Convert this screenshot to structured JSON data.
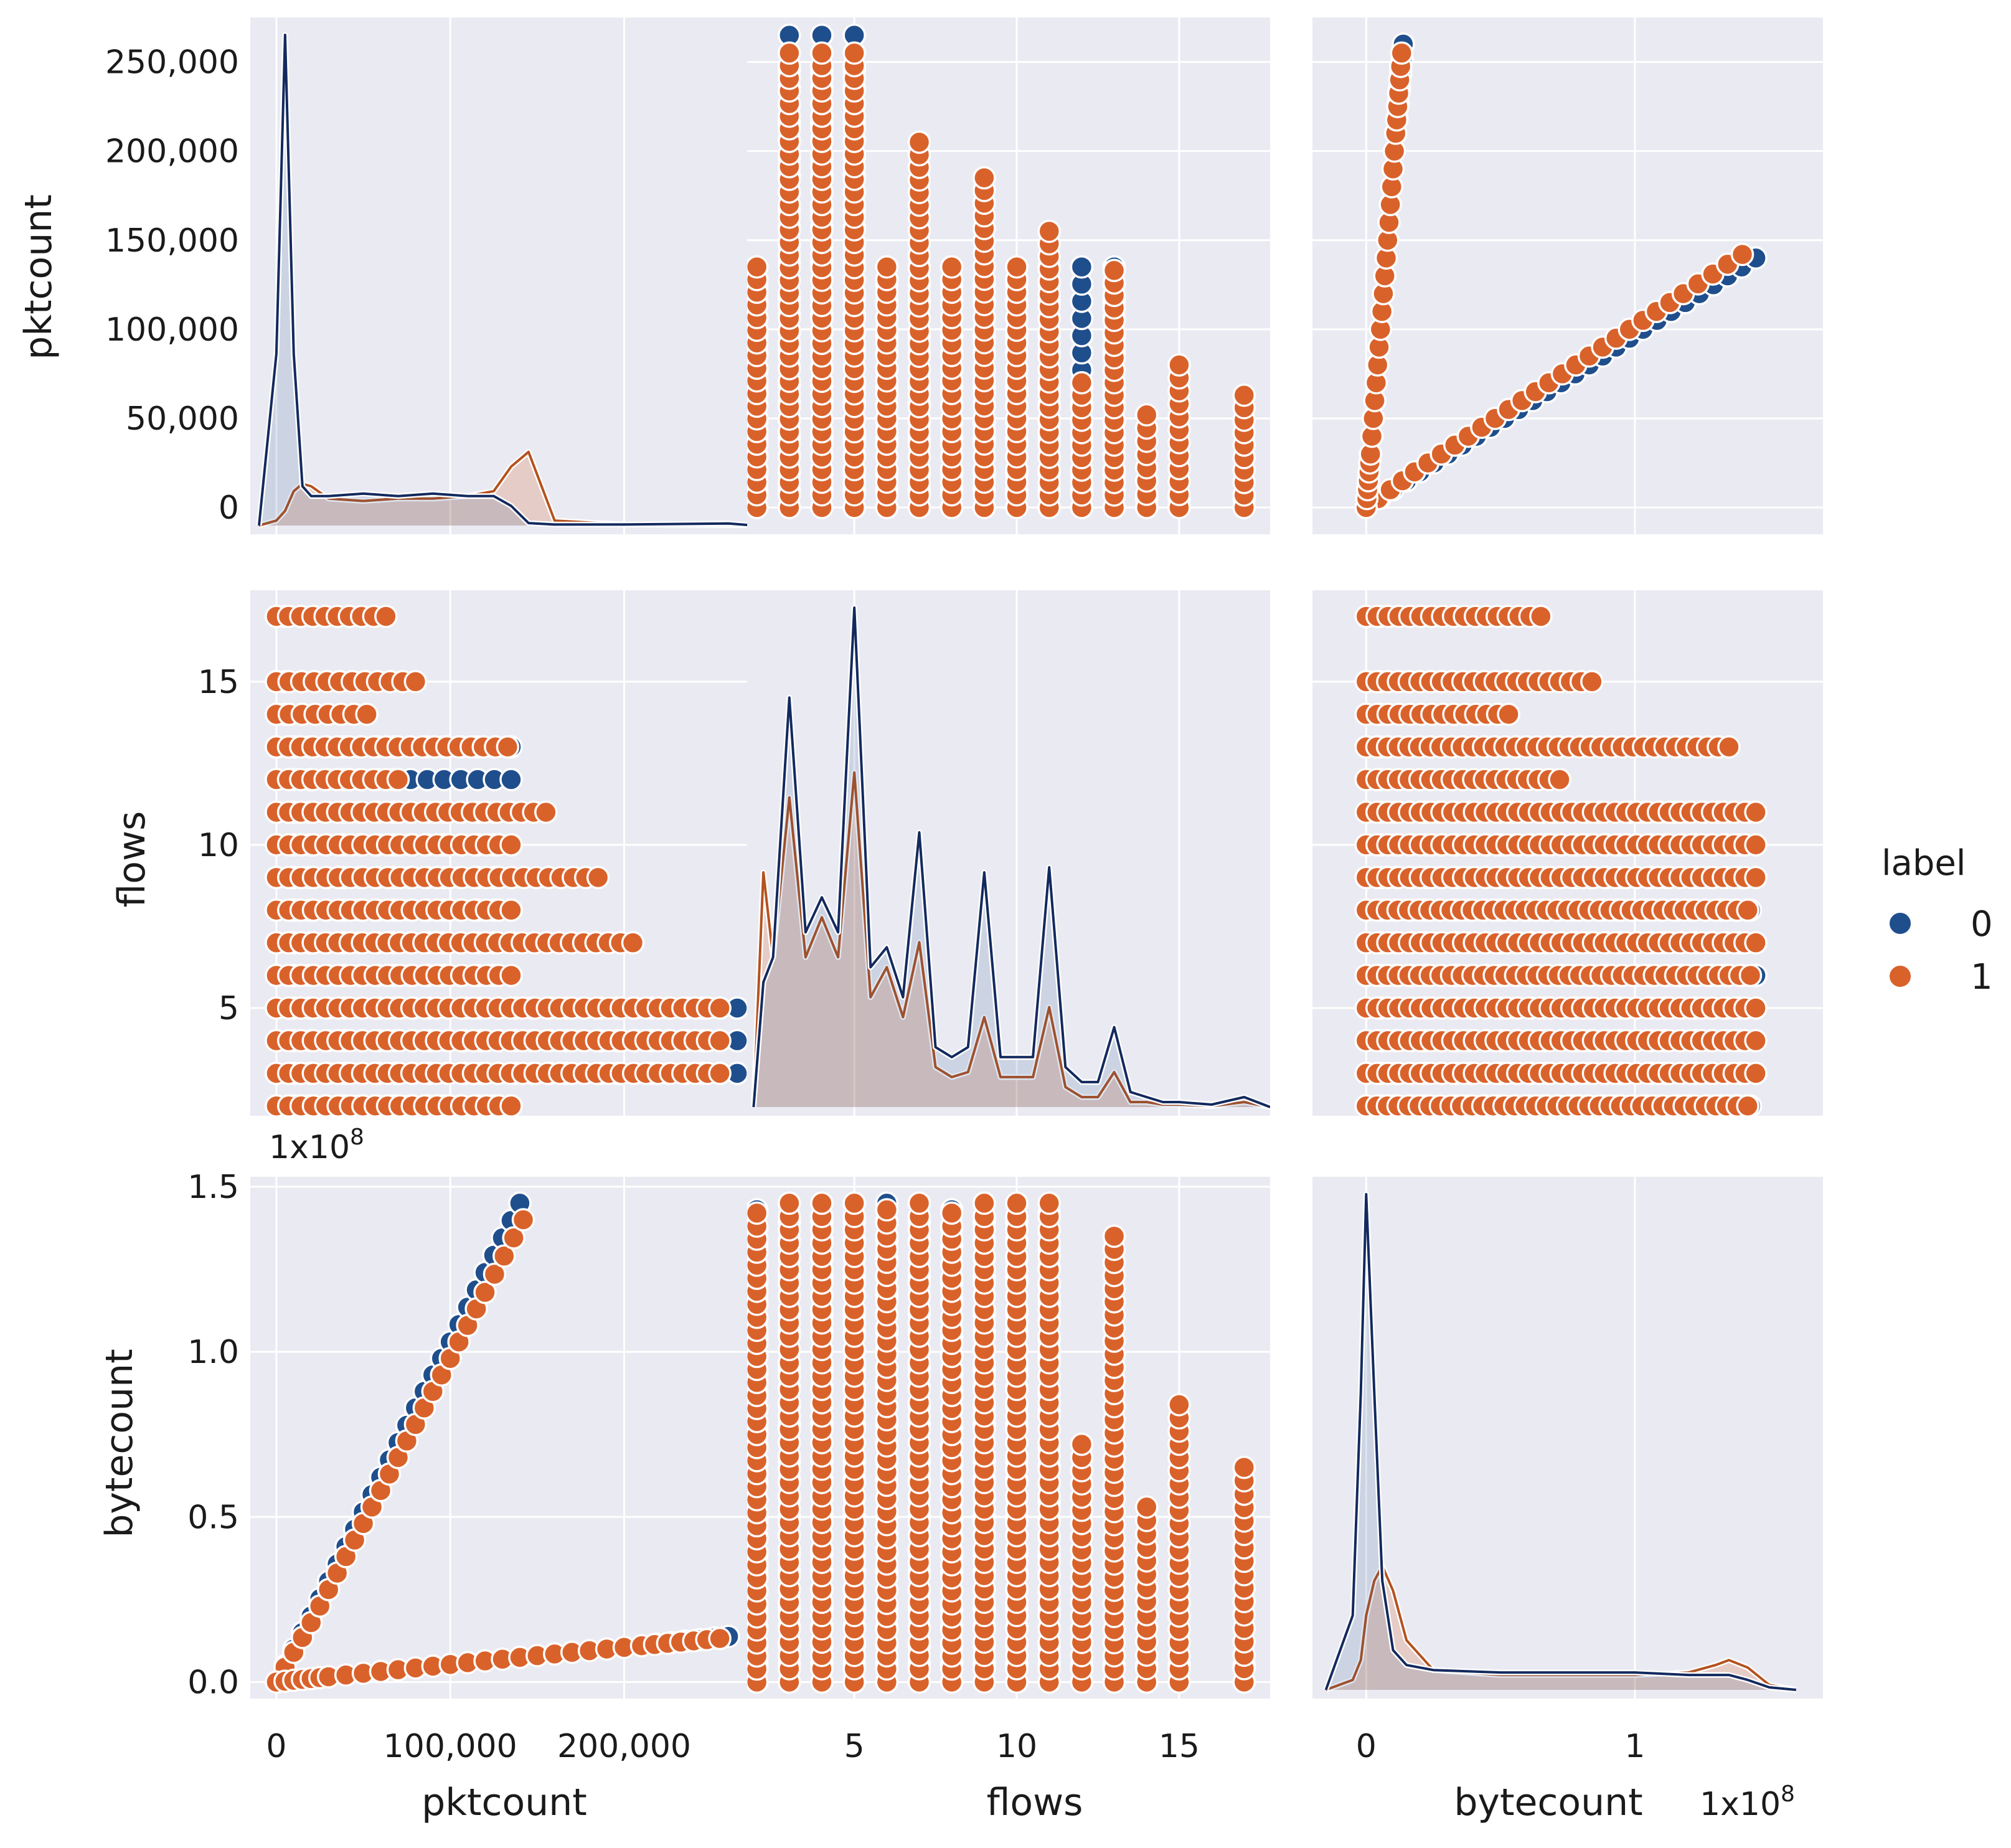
{
  "colors": {
    "label_0": "#1f4e8c",
    "label_0_line": "#132a5e",
    "label_1": "#d9622b",
    "label_1_line": "#b4521f",
    "panel_bg": "#eaeaf2",
    "grid": "#ffffff"
  },
  "legend": {
    "title": "label",
    "entries": [
      "0",
      "1"
    ]
  },
  "chart_data": {
    "type": "scatter",
    "kind": "pairplot",
    "variables": [
      "pktcount",
      "flows",
      "bytecount"
    ],
    "hue": "label",
    "grid": true,
    "legend_placement": "right",
    "axes": {
      "pktcount": {
        "label": "pktcount",
        "range": [
          -15000,
          275000
        ],
        "y_ticks": [
          0,
          50000,
          100000,
          150000,
          200000,
          250000
        ],
        "y_tick_labels": [
          "0",
          "50,000",
          "100,000",
          "150,000",
          "200,000",
          "250,000"
        ],
        "x_ticks": [
          0,
          100000,
          200000
        ],
        "x_tick_labels": [
          "0",
          "100,000",
          "200,000"
        ]
      },
      "flows": {
        "label": "flows",
        "range": [
          1.7,
          17.8
        ],
        "y_ticks": [
          5,
          10,
          15
        ],
        "y_tick_labels": [
          "5",
          "10",
          "15"
        ],
        "x_ticks": [
          5,
          10,
          15
        ],
        "x_tick_labels": [
          "5",
          "10",
          "15"
        ]
      },
      "bytecount": {
        "label": "bytecount",
        "multiplier": "1x10",
        "exponent": "8",
        "range": [
          -0.05,
          1.53
        ],
        "range_x": [
          -0.2,
          1.7
        ],
        "y_ticks": [
          0.0,
          0.5,
          1.0,
          1.5
        ],
        "y_tick_labels": [
          "0.0",
          "0.5",
          "1.0",
          "1.5"
        ],
        "x_ticks": [
          0,
          1
        ],
        "x_tick_labels": [
          "0",
          "1"
        ]
      }
    },
    "flows_levels": [
      2,
      3,
      4,
      5,
      6,
      7,
      8,
      9,
      10,
      11,
      12,
      13,
      14,
      15,
      17
    ],
    "scatter": {
      "pktcount_flows": {
        "label_0": [
          {
            "flows": 2,
            "pkt_range": [
              0,
              135000
            ]
          },
          {
            "flows": 3,
            "pkt_range": [
              0,
              265000
            ]
          },
          {
            "flows": 4,
            "pkt_range": [
              0,
              265000
            ]
          },
          {
            "flows": 5,
            "pkt_range": [
              0,
              265000
            ]
          },
          {
            "flows": 6,
            "pkt_range": [
              0,
              135000
            ]
          },
          {
            "flows": 7,
            "pkt_range": [
              0,
              135000
            ]
          },
          {
            "flows": 8,
            "pkt_range": [
              0,
              135000
            ]
          },
          {
            "flows": 9,
            "pkt_range": [
              0,
              135000
            ]
          },
          {
            "flows": 10,
            "pkt_range": [
              0,
              135000
            ]
          },
          {
            "flows": 11,
            "pkt_range": [
              0,
              135000
            ]
          },
          {
            "flows": 12,
            "pkt_range": [
              0,
              135000
            ]
          },
          {
            "flows": 13,
            "pkt_range": [
              0,
              135000
            ]
          },
          {
            "flows": 14,
            "pkt_range": [
              0,
              5000
            ]
          },
          {
            "flows": 15,
            "pkt_range": [
              0,
              5000
            ]
          },
          {
            "flows": 17,
            "pkt_range": [
              0,
              5000
            ]
          }
        ],
        "label_1": [
          {
            "flows": 2,
            "pkt_range": [
              0,
              135000
            ]
          },
          {
            "flows": 3,
            "pkt_range": [
              0,
              255000
            ]
          },
          {
            "flows": 4,
            "pkt_range": [
              0,
              255000
            ]
          },
          {
            "flows": 5,
            "pkt_range": [
              0,
              255000
            ]
          },
          {
            "flows": 6,
            "pkt_range": [
              0,
              135000
            ]
          },
          {
            "flows": 7,
            "pkt_range": [
              0,
              205000
            ]
          },
          {
            "flows": 8,
            "pkt_range": [
              0,
              135000
            ]
          },
          {
            "flows": 9,
            "pkt_range": [
              0,
              185000
            ]
          },
          {
            "flows": 10,
            "pkt_range": [
              0,
              135000
            ]
          },
          {
            "flows": 11,
            "pkt_range": [
              0,
              155000
            ]
          },
          {
            "flows": 12,
            "pkt_range": [
              0,
              70000
            ]
          },
          {
            "flows": 13,
            "pkt_range": [
              0,
              133000
            ]
          },
          {
            "flows": 14,
            "pkt_range": [
              0,
              52000
            ]
          },
          {
            "flows": 15,
            "pkt_range": [
              0,
              80000
            ]
          },
          {
            "flows": 17,
            "pkt_range": [
              0,
              63000
            ]
          }
        ]
      },
      "pktcount_bytecount": {
        "label_0": [
          {
            "pkt": 0,
            "byte": 0
          },
          {
            "pkt": 20000,
            "byte": 0.2
          },
          {
            "pkt": 40000,
            "byte": 0.41
          },
          {
            "pkt": 60000,
            "byte": 0.62
          },
          {
            "pkt": 80000,
            "byte": 0.83
          },
          {
            "pkt": 100000,
            "byte": 1.03
          },
          {
            "pkt": 120000,
            "byte": 1.24
          },
          {
            "pkt": 140000,
            "byte": 1.45
          },
          {
            "pkt": 30000,
            "byte": 0.016
          },
          {
            "pkt": 90000,
            "byte": 0.048
          },
          {
            "pkt": 150000,
            "byte": 0.08
          },
          {
            "pkt": 210000,
            "byte": 0.11
          },
          {
            "pkt": 260000,
            "byte": 0.138
          }
        ],
        "label_1": [
          {
            "pkt": 0,
            "byte": 0
          },
          {
            "pkt": 20000,
            "byte": 0.18
          },
          {
            "pkt": 40000,
            "byte": 0.38
          },
          {
            "pkt": 60000,
            "byte": 0.58
          },
          {
            "pkt": 80000,
            "byte": 0.78
          },
          {
            "pkt": 100000,
            "byte": 0.98
          },
          {
            "pkt": 120000,
            "byte": 1.18
          },
          {
            "pkt": 142000,
            "byte": 1.4
          },
          {
            "pkt": 30000,
            "byte": 0.016
          },
          {
            "pkt": 90000,
            "byte": 0.048
          },
          {
            "pkt": 150000,
            "byte": 0.08
          },
          {
            "pkt": 210000,
            "byte": 0.11
          },
          {
            "pkt": 255000,
            "byte": 0.132
          }
        ]
      },
      "flows_bytecount": {
        "label_0": [
          {
            "flows": 2,
            "byte_range": [
              0,
              1.43
            ]
          },
          {
            "flows": 3,
            "byte_range": [
              0,
              1.45
            ]
          },
          {
            "flows": 4,
            "byte_range": [
              0,
              1.45
            ]
          },
          {
            "flows": 5,
            "byte_range": [
              0,
              1.45
            ]
          },
          {
            "flows": 6,
            "byte_range": [
              0,
              1.45
            ]
          },
          {
            "flows": 7,
            "byte_range": [
              0,
              1.45
            ]
          },
          {
            "flows": 8,
            "byte_range": [
              0,
              1.43
            ]
          },
          {
            "flows": 9,
            "byte_range": [
              0,
              1.45
            ]
          },
          {
            "flows": 10,
            "byte_range": [
              0,
              1.45
            ]
          },
          {
            "flows": 11,
            "byte_range": [
              0,
              1.42
            ]
          },
          {
            "flows": 12,
            "byte_range": [
              0,
              0.05
            ]
          },
          {
            "flows": 13,
            "byte_range": [
              0,
              0.05
            ]
          },
          {
            "flows": 14,
            "byte_range": [
              0,
              0.05
            ]
          },
          {
            "flows": 15,
            "byte_range": [
              0,
              0.05
            ]
          },
          {
            "flows": 17,
            "byte_range": [
              0,
              0.05
            ]
          }
        ],
        "label_1": [
          {
            "flows": 2,
            "byte_range": [
              0,
              1.42
            ]
          },
          {
            "flows": 3,
            "byte_range": [
              0,
              1.45
            ]
          },
          {
            "flows": 4,
            "byte_range": [
              0,
              1.45
            ]
          },
          {
            "flows": 5,
            "byte_range": [
              0,
              1.45
            ]
          },
          {
            "flows": 6,
            "byte_range": [
              0,
              1.43
            ]
          },
          {
            "flows": 7,
            "byte_range": [
              0,
              1.45
            ]
          },
          {
            "flows": 8,
            "byte_range": [
              0,
              1.42
            ]
          },
          {
            "flows": 9,
            "byte_range": [
              0,
              1.45
            ]
          },
          {
            "flows": 10,
            "byte_range": [
              0,
              1.45
            ]
          },
          {
            "flows": 11,
            "byte_range": [
              0,
              1.45
            ]
          },
          {
            "flows": 12,
            "byte_range": [
              0,
              0.72
            ]
          },
          {
            "flows": 13,
            "byte_range": [
              0,
              1.35
            ]
          },
          {
            "flows": 14,
            "byte_range": [
              0,
              0.53
            ]
          },
          {
            "flows": 15,
            "byte_range": [
              0,
              0.84
            ]
          },
          {
            "flows": 17,
            "byte_range": [
              0,
              0.65
            ]
          }
        ]
      }
    },
    "kde": {
      "pktcount": {
        "x": [
          -10000,
          0,
          5000,
          10000,
          15000,
          20000,
          30000,
          50000,
          70000,
          90000,
          110000,
          125000,
          135000,
          145000,
          160000,
          200000,
          260000,
          275000
        ],
        "label_0": [
          0,
          0.35,
          1.0,
          0.35,
          0.08,
          0.06,
          0.06,
          0.065,
          0.06,
          0.065,
          0.06,
          0.06,
          0.04,
          0.005,
          0.002,
          0.002,
          0.004,
          0
        ],
        "label_1": [
          0,
          0.01,
          0.03,
          0.07,
          0.085,
          0.08,
          0.055,
          0.05,
          0.055,
          0.055,
          0.06,
          0.07,
          0.12,
          0.15,
          0.01,
          0.002,
          0.001,
          0
        ]
      },
      "flows": {
        "x": [
          1.9,
          2.2,
          2.5,
          3.0,
          3.5,
          4.0,
          4.5,
          5.0,
          5.5,
          6.0,
          6.5,
          7.0,
          7.5,
          8.0,
          8.5,
          9.0,
          9.5,
          10.0,
          10.5,
          11.0,
          11.5,
          12.0,
          12.5,
          13.0,
          13.5,
          14.0,
          14.5,
          15.0,
          16.0,
          17.0,
          17.8
        ],
        "label_0": [
          0,
          0.25,
          0.3,
          0.82,
          0.35,
          0.42,
          0.35,
          1.0,
          0.28,
          0.32,
          0.22,
          0.55,
          0.12,
          0.1,
          0.12,
          0.47,
          0.1,
          0.1,
          0.1,
          0.48,
          0.08,
          0.05,
          0.05,
          0.16,
          0.03,
          0.02,
          0.01,
          0.01,
          0.005,
          0.02,
          0
        ],
        "label_1": [
          0,
          0.47,
          0.3,
          0.62,
          0.3,
          0.38,
          0.3,
          0.67,
          0.22,
          0.28,
          0.18,
          0.33,
          0.08,
          0.06,
          0.07,
          0.18,
          0.06,
          0.06,
          0.06,
          0.2,
          0.04,
          0.02,
          0.02,
          0.07,
          0.01,
          0.01,
          0.005,
          0.005,
          0.002,
          0.01,
          0
        ]
      },
      "bytecount": {
        "x": [
          -0.15,
          -0.05,
          -0.02,
          0.0,
          0.03,
          0.06,
          0.1,
          0.15,
          0.25,
          0.5,
          0.8,
          1.0,
          1.2,
          1.3,
          1.35,
          1.42,
          1.5,
          1.6
        ],
        "label_0": [
          0,
          0.15,
          0.6,
          1.0,
          0.6,
          0.22,
          0.08,
          0.05,
          0.04,
          0.035,
          0.035,
          0.035,
          0.03,
          0.03,
          0.03,
          0.02,
          0.005,
          0
        ],
        "label_1": [
          0,
          0.02,
          0.06,
          0.15,
          0.22,
          0.25,
          0.2,
          0.1,
          0.04,
          0.03,
          0.03,
          0.03,
          0.035,
          0.05,
          0.06,
          0.045,
          0.01,
          0
        ]
      }
    }
  }
}
